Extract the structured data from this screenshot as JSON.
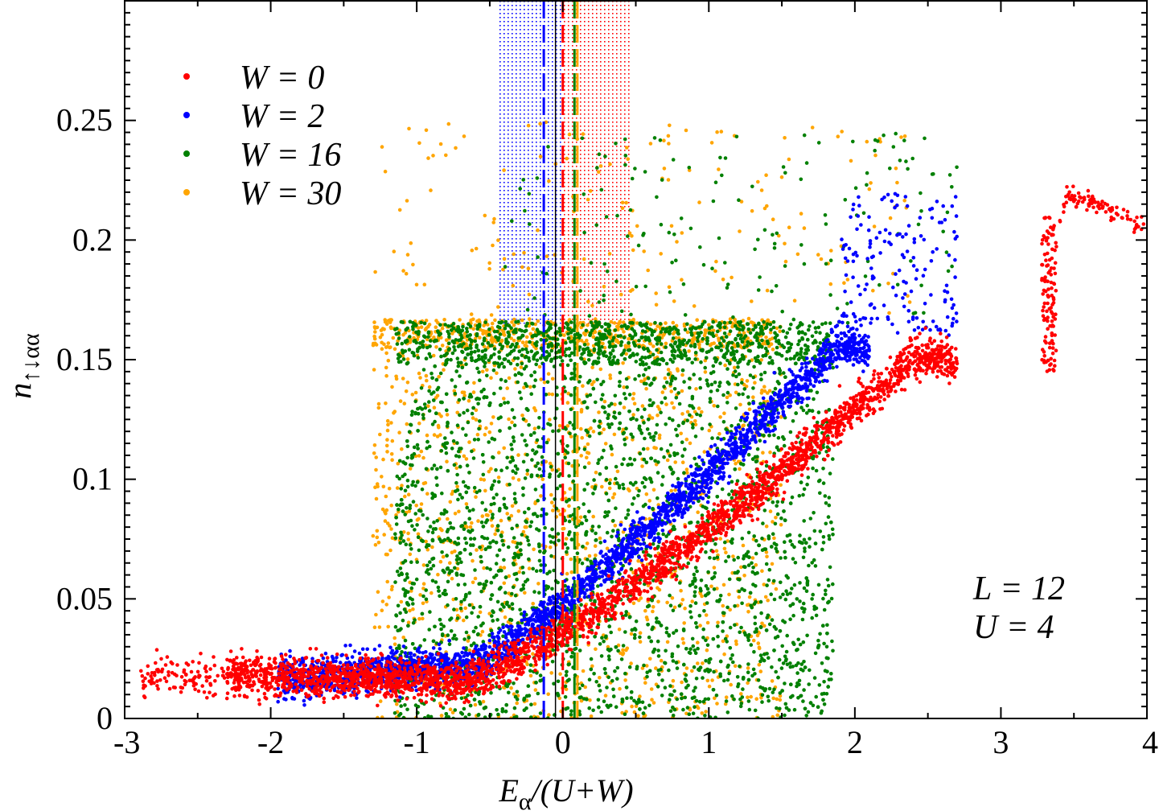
{
  "chart_data": {
    "type": "scatter",
    "title": "",
    "xlabel_main": "E",
    "xlabel_sub": "α",
    "xlabel_rest": "/(U+W)",
    "ylabel_main": "n",
    "ylabel_sub": "↑↓αα",
    "xlim": [
      -3,
      4
    ],
    "ylim": [
      0,
      0.3
    ],
    "x_ticks": [
      -3,
      -2,
      -1,
      0,
      1,
      2,
      3,
      4
    ],
    "x_tick_labels": [
      "-3",
      "-2",
      "-1",
      "0",
      "1",
      "2",
      "3",
      "4"
    ],
    "y_ticks": [
      0,
      0.05,
      0.1,
      0.15,
      0.2,
      0.25
    ],
    "y_tick_labels": [
      "0",
      "0.05",
      "0.1",
      "0.15",
      "0.2",
      "0.25"
    ],
    "legend_position": "top-left",
    "series": [
      {
        "name": "W = 0",
        "color": "#ff0000",
        "marker_line_x": 0.0
      },
      {
        "name": "W = 2",
        "color": "#0000ff",
        "marker_line_x": -0.13
      },
      {
        "name": "W = 16",
        "color": "#008000",
        "marker_line_x": 0.08
      },
      {
        "name": "W = 30",
        "color": "#ffa500",
        "marker_line_x": 0.1
      }
    ],
    "shaded_bands": [
      {
        "color": "#0000ff",
        "x_range": [
          -0.45,
          0.0
        ]
      },
      {
        "color": "#ff0000",
        "x_range": [
          0.0,
          0.47
        ]
      }
    ],
    "vertical_solid_line_x": -0.05,
    "annotations": [
      "L = 12",
      "U = 4"
    ]
  }
}
